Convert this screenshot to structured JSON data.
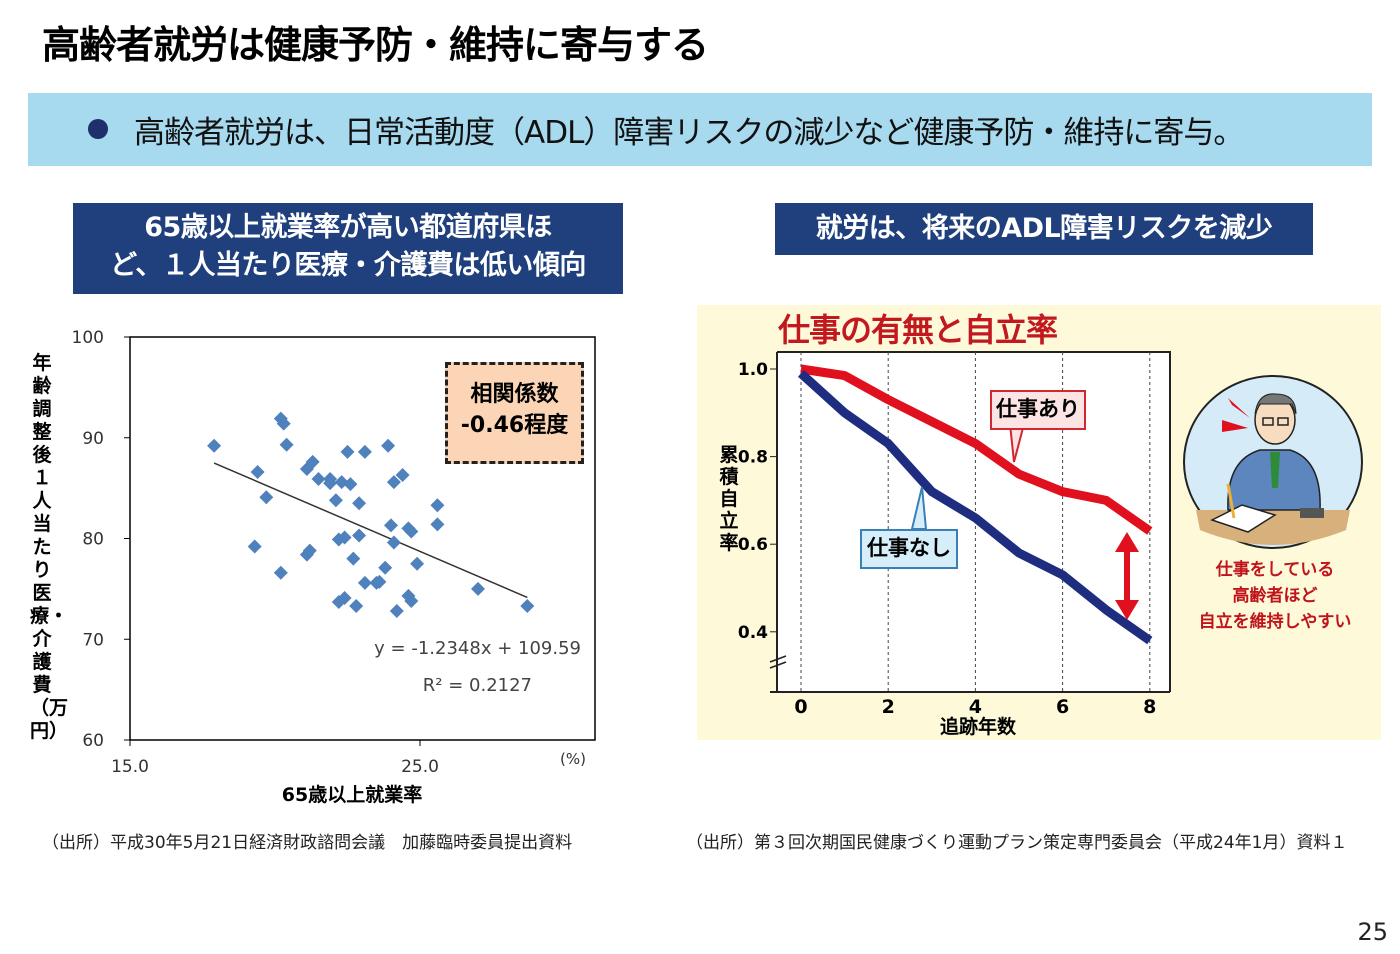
{
  "title": "高齢者就労は健康予防・維持に寄与する",
  "banner": {
    "bullet_icon": "filled-circle",
    "text": "高齢者就労は、日常活動度（ADL）障害リスクの減少など健康予防・維持に寄与。"
  },
  "left_panel": {
    "heading_line1": "65歳以上就業率が高い都道府県ほ",
    "heading_line2": "ど、１人当たり医療・介護費は低い傾向",
    "correlation_box": {
      "line1": "相関係数",
      "line2": "-0.46程度"
    },
    "source": "（出所）平成30年5月21日経済財政諮問会議　加藤臨時委員提出資料"
  },
  "right_panel": {
    "heading": "就労は、将来のADL障害リスクを減少",
    "note_lines": [
      "仕事をしている",
      "高齢者ほど",
      "自立を維持しやすい"
    ],
    "source": "（出所）第３回次期国民健康づくり運動プラン策定専門委員会（平成24年1月）資料１"
  },
  "page_number": "25",
  "colors": {
    "banner": "#a7d9ef",
    "heading_box": "#1f3f7d",
    "scatter_point": "#4f81bd",
    "work_yes": "#e0101e",
    "work_no": "#1e2d80",
    "panel_bg": "#fdf9d9"
  },
  "chart_data": [
    {
      "type": "scatter",
      "title": "",
      "xlabel": "65歳以上就業率",
      "xunit": "(%)",
      "ylabel": "年齢調整後１人当たり医療・介護費（万円）",
      "xlim": [
        15,
        31
      ],
      "ylim": [
        60,
        100
      ],
      "xticks": [
        "15.0",
        "25.0"
      ],
      "xtick_values": [
        15,
        25
      ],
      "yticks": [
        "60",
        "70",
        "80",
        "90",
        "100"
      ],
      "ytick_values": [
        60,
        70,
        80,
        90,
        100
      ],
      "grid": false,
      "trendline": {
        "equation": "y = -1.2348x + 109.59",
        "r2": "R² = 0.2127",
        "slope": -1.2348,
        "intercept": 109.59,
        "x_range": [
          17.9,
          28.7
        ]
      },
      "points": [
        [
          17.9,
          89.2
        ],
        [
          20.2,
          91.9
        ],
        [
          20.3,
          91.4
        ],
        [
          20.4,
          89.3
        ],
        [
          19.4,
          86.6
        ],
        [
          19.7,
          84.1
        ],
        [
          21.3,
          87.6
        ],
        [
          21.1,
          86.9
        ],
        [
          21.5,
          85.9
        ],
        [
          21.9,
          85.5
        ],
        [
          21.9,
          85.9
        ],
        [
          22.3,
          85.6
        ],
        [
          22.6,
          85.4
        ],
        [
          22.5,
          88.6
        ],
        [
          23.1,
          88.6
        ],
        [
          23.9,
          89.2
        ],
        [
          22.1,
          83.8
        ],
        [
          22.9,
          83.5
        ],
        [
          24.1,
          85.6
        ],
        [
          24.4,
          86.3
        ],
        [
          25.6,
          83.3
        ],
        [
          25.6,
          81.4
        ],
        [
          24.0,
          81.3
        ],
        [
          24.6,
          81.0
        ],
        [
          24.7,
          80.7
        ],
        [
          24.1,
          79.6
        ],
        [
          22.9,
          80.3
        ],
        [
          22.4,
          80.1
        ],
        [
          22.2,
          79.9
        ],
        [
          19.3,
          79.2
        ],
        [
          21.1,
          78.4
        ],
        [
          21.2,
          78.8
        ],
        [
          22.7,
          78.0
        ],
        [
          24.9,
          77.5
        ],
        [
          23.8,
          77.1
        ],
        [
          23.1,
          75.6
        ],
        [
          23.5,
          75.6
        ],
        [
          23.6,
          75.7
        ],
        [
          20.2,
          76.6
        ],
        [
          22.2,
          73.7
        ],
        [
          22.4,
          74.1
        ],
        [
          22.8,
          73.3
        ],
        [
          24.6,
          74.3
        ],
        [
          24.7,
          73.8
        ],
        [
          24.2,
          72.8
        ],
        [
          27.0,
          75.0
        ],
        [
          28.7,
          73.3
        ]
      ]
    },
    {
      "type": "line",
      "title": "仕事の有無と自立率",
      "xlabel": "追跡年数",
      "ylabel": "累積自立率",
      "xlim": [
        0,
        8
      ],
      "ylim": [
        0.4,
        1.0
      ],
      "xticks": [
        "0",
        "2",
        "4",
        "6",
        "8"
      ],
      "xtick_values": [
        0,
        2,
        4,
        6,
        8
      ],
      "yticks": [
        "0.4",
        "0.6",
        "0.8",
        "1.0"
      ],
      "ytick_values": [
        0.4,
        0.6,
        0.8,
        1.0
      ],
      "grid": "vertical dashed",
      "x": [
        0,
        1,
        2,
        3,
        4,
        5,
        6,
        7,
        8
      ],
      "series": [
        {
          "name": "仕事あり",
          "color": "#e0101e",
          "values": [
            1.0,
            0.985,
            0.93,
            0.88,
            0.83,
            0.76,
            0.72,
            0.7,
            0.63
          ]
        },
        {
          "name": "仕事なし",
          "color": "#1e2d80",
          "values": [
            0.99,
            0.9,
            0.83,
            0.72,
            0.66,
            0.58,
            0.53,
            0.45,
            0.38
          ]
        }
      ]
    }
  ]
}
